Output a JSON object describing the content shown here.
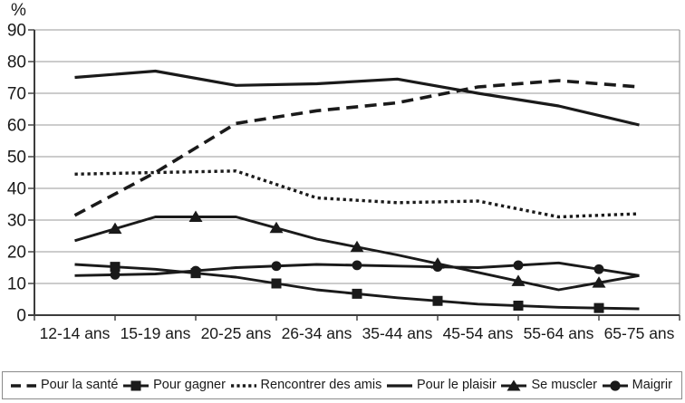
{
  "colors": {
    "line": "#1a1a1a",
    "grid": "#999999",
    "axis": "#3c3c3c",
    "text": "#1a1a1a",
    "background": "#ffffff",
    "legend_border": "#8a8a8a"
  },
  "chart_data": {
    "type": "line",
    "title": "",
    "xlabel": "",
    "ylabel": "%",
    "ylim": [
      0,
      90
    ],
    "ytick_step": 10,
    "y_tick_labels": [
      "0",
      "10",
      "20",
      "30",
      "40",
      "50",
      "60",
      "70",
      "80",
      "90"
    ],
    "grid": true,
    "legend_position": "bottom",
    "categories": [
      "12-14 ans",
      "15-19 ans",
      "20-25 ans",
      "26-34 ans",
      "35-44 ans",
      "45-54 ans",
      "55-64 ans",
      "65-75 ans"
    ],
    "series": [
      {
        "name": "Pour la santé",
        "line": "dashed",
        "marker": "none",
        "values": [
          31.5,
          45,
          60.5,
          64.5,
          67,
          72,
          74,
          72
        ]
      },
      {
        "name": "Pour gagner",
        "line": "solid",
        "marker": "square",
        "values": [
          16,
          14.5,
          12,
          8,
          5.5,
          3.5,
          2.5,
          2
        ]
      },
      {
        "name": "Rencontrer des amis",
        "line": "dotted",
        "marker": "none",
        "values": [
          44.5,
          45,
          45.5,
          37,
          35.5,
          36,
          31,
          32
        ]
      },
      {
        "name": "Pour le plaisir",
        "line": "solid",
        "marker": "none",
        "values": [
          75,
          77,
          72.5,
          73,
          74.5,
          70,
          66,
          60
        ]
      },
      {
        "name": "Se muscler",
        "line": "solid",
        "marker": "triangle",
        "values": [
          23.5,
          31,
          31,
          24,
          19,
          13.5,
          8,
          12.5
        ]
      },
      {
        "name": "Maigrir",
        "line": "solid",
        "marker": "circle",
        "values": [
          12.5,
          13,
          15,
          16,
          15.5,
          15,
          16.5,
          12.5
        ]
      }
    ]
  }
}
